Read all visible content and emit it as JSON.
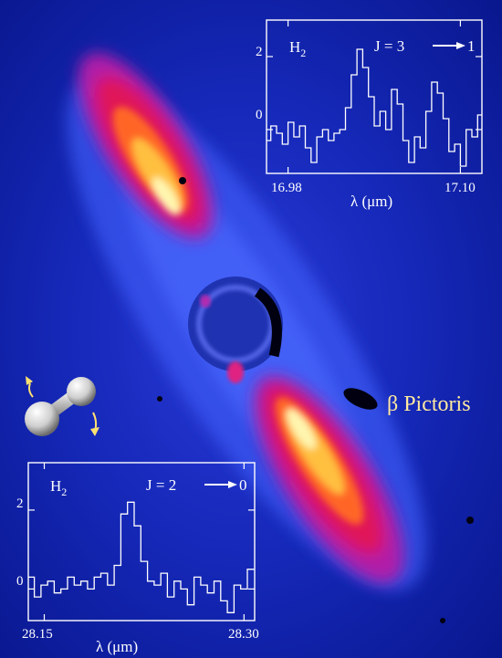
{
  "object_label": "β Pictoris",
  "colors": {
    "background": "#0a1a9a",
    "disk_hot": "#fff6b0",
    "disk_warm": "#ff6a2a",
    "disk_cool": "#d01080",
    "label_text": "#ffe9a0",
    "plot_line": "#ffffff"
  },
  "molecule": {
    "icon": "h2-dumbbell-icon"
  },
  "chart_data": [
    {
      "type": "line",
      "title": "",
      "species": "H",
      "species_sub": "2",
      "transition": "J = 3",
      "transition_to": "1",
      "xlabel": "λ (μm)",
      "ylabel": "",
      "x_ticks": [
        "16.98",
        "17.10"
      ],
      "y_ticks": [
        "2",
        "0"
      ],
      "xlim": [
        16.965,
        17.115
      ],
      "ylim": [
        -1.2,
        3.0
      ],
      "series": [
        {
          "x": [
            16.966,
            16.97,
            16.974,
            16.978,
            16.982,
            16.986,
            16.99,
            16.994,
            16.998,
            17.002,
            17.006,
            17.01,
            17.014,
            17.018,
            17.022,
            17.026,
            17.03,
            17.034,
            17.038,
            17.042,
            17.046,
            17.05,
            17.054,
            17.058,
            17.062,
            17.066,
            17.07,
            17.074,
            17.078,
            17.082,
            17.086,
            17.09,
            17.094,
            17.098,
            17.102,
            17.106,
            17.11,
            17.114
          ],
          "values": [
            -0.3,
            0.1,
            -0.1,
            -0.4,
            0.2,
            -0.2,
            0.1,
            -0.5,
            -0.9,
            -0.2,
            0.0,
            -0.3,
            -0.1,
            0.0,
            0.6,
            1.5,
            2.2,
            1.7,
            0.9,
            0.1,
            0.5,
            0.0,
            1.1,
            0.7,
            -0.3,
            -0.9,
            -0.2,
            -0.5,
            0.5,
            1.3,
            1.0,
            0.3,
            -0.6,
            -0.4,
            -1.0,
            0.0,
            -0.2,
            0.4
          ]
        }
      ]
    },
    {
      "type": "line",
      "title": "",
      "species": "H",
      "species_sub": "2",
      "transition": "J = 2",
      "transition_to": "0",
      "xlabel": "λ (μm)",
      "ylabel": "",
      "x_ticks": [
        "28.15",
        "28.30"
      ],
      "y_ticks": [
        "2",
        "0"
      ],
      "xlim": [
        28.138,
        28.308
      ],
      "ylim": [
        -0.8,
        3.2
      ],
      "series": [
        {
          "x": [
            28.14,
            28.145,
            28.15,
            28.155,
            28.16,
            28.165,
            28.17,
            28.175,
            28.18,
            28.185,
            28.19,
            28.195,
            28.2,
            28.205,
            28.21,
            28.215,
            28.22,
            28.225,
            28.23,
            28.235,
            28.24,
            28.245,
            28.25,
            28.255,
            28.26,
            28.265,
            28.27,
            28.275,
            28.28,
            28.285,
            28.29,
            28.295,
            28.3,
            28.305
          ],
          "values": [
            0.3,
            -0.2,
            0.1,
            0.2,
            -0.1,
            0.0,
            0.3,
            0.1,
            0.2,
            0.0,
            0.3,
            0.4,
            0.1,
            0.6,
            1.9,
            2.2,
            1.6,
            0.7,
            0.2,
            0.1,
            0.4,
            -0.2,
            0.2,
            0.0,
            -0.4,
            0.3,
            0.1,
            -0.1,
            0.2,
            -0.3,
            -0.6,
            0.1,
            0.0,
            0.5
          ]
        }
      ]
    }
  ]
}
